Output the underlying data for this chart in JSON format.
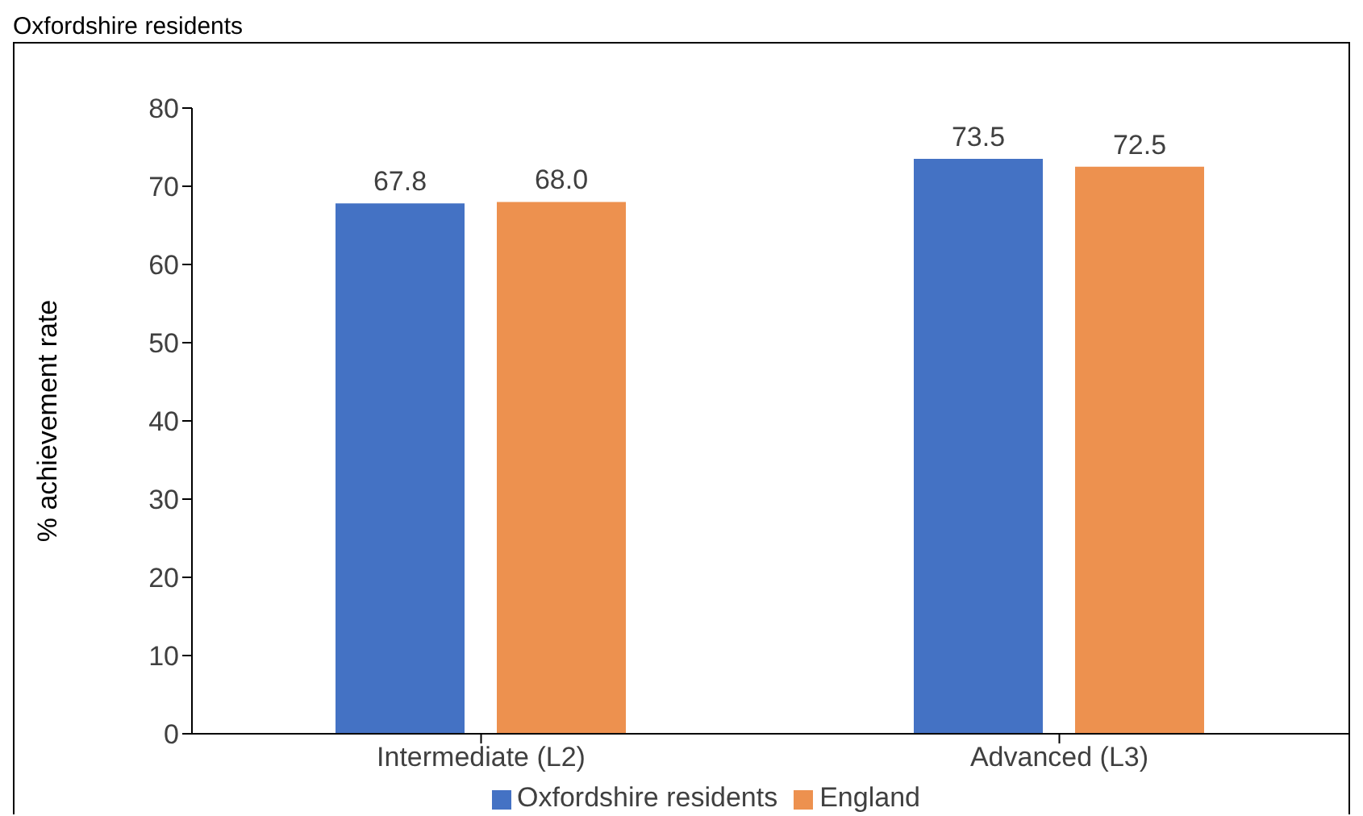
{
  "chart_data": {
    "type": "bar",
    "title": "Oxfordshire residents",
    "categories": [
      "Intermediate (L2)",
      "Advanced (L3)"
    ],
    "ylabel": "% achievement rate",
    "series": [
      {
        "name": "Oxfordshire residents",
        "color": "#4472c4",
        "values": [
          67.8,
          73.5
        ],
        "value_labels": [
          "67.8",
          "73.5"
        ]
      },
      {
        "name": "England",
        "color": "#ed914f",
        "values": [
          68.0,
          72.5
        ],
        "value_labels": [
          "68.0",
          "72.5"
        ]
      }
    ],
    "ylim": [
      0,
      80
    ],
    "yticks": [
      0,
      10,
      20,
      30,
      40,
      50,
      60,
      70,
      80
    ],
    "grid": false,
    "legend": "bottom"
  }
}
